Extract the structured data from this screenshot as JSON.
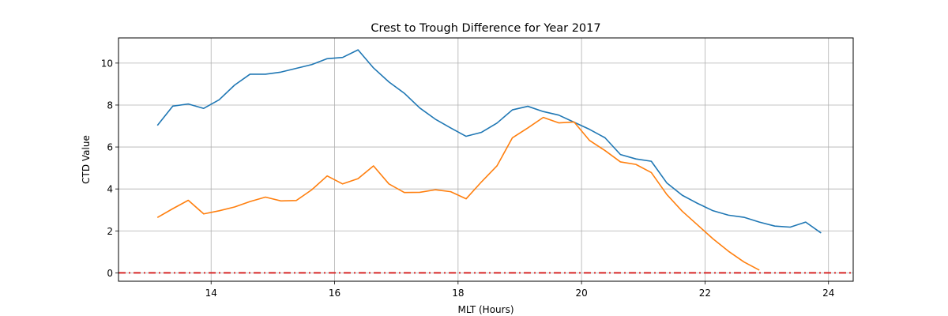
{
  "chart_data": {
    "type": "line",
    "title": "Crest to Trough Difference for Year 2017",
    "xlabel": "MLT (Hours)",
    "ylabel": "CTD Value",
    "xlim": [
      12.5,
      24.4
    ],
    "ylim": [
      -0.4,
      11.2
    ],
    "xticks": [
      14,
      16,
      18,
      20,
      22,
      24
    ],
    "yticks": [
      0,
      2,
      4,
      6,
      8,
      10
    ],
    "grid": true,
    "legend": "none",
    "series": [
      {
        "color": "#1f77b4",
        "points": [
          [
            13.13,
            7.03
          ],
          [
            13.38,
            7.95
          ],
          [
            13.63,
            8.05
          ],
          [
            13.88,
            7.84
          ],
          [
            14.13,
            8.25
          ],
          [
            14.38,
            8.95
          ],
          [
            14.63,
            9.47
          ],
          [
            14.88,
            9.47
          ],
          [
            15.13,
            9.57
          ],
          [
            15.38,
            9.75
          ],
          [
            15.63,
            9.93
          ],
          [
            15.88,
            10.21
          ],
          [
            16.13,
            10.27
          ],
          [
            16.38,
            10.63
          ],
          [
            16.63,
            9.77
          ],
          [
            16.88,
            9.1
          ],
          [
            17.13,
            8.56
          ],
          [
            17.38,
            7.86
          ],
          [
            17.63,
            7.33
          ],
          [
            17.88,
            6.91
          ],
          [
            18.13,
            6.51
          ],
          [
            18.38,
            6.7
          ],
          [
            18.63,
            7.14
          ],
          [
            18.88,
            7.77
          ],
          [
            19.13,
            7.94
          ],
          [
            19.38,
            7.69
          ],
          [
            19.63,
            7.52
          ],
          [
            19.88,
            7.18
          ],
          [
            20.13,
            6.84
          ],
          [
            20.38,
            6.44
          ],
          [
            20.63,
            5.64
          ],
          [
            20.88,
            5.43
          ],
          [
            21.13,
            5.32
          ],
          [
            21.38,
            4.29
          ],
          [
            21.63,
            3.7
          ],
          [
            21.88,
            3.31
          ],
          [
            22.13,
            2.96
          ],
          [
            22.38,
            2.75
          ],
          [
            22.63,
            2.65
          ],
          [
            22.88,
            2.42
          ],
          [
            23.13,
            2.23
          ],
          [
            23.38,
            2.18
          ],
          [
            23.63,
            2.42
          ],
          [
            23.88,
            1.9
          ]
        ]
      },
      {
        "color": "#ff7f0e",
        "points": [
          [
            13.13,
            2.64
          ],
          [
            13.38,
            3.06
          ],
          [
            13.63,
            3.46
          ],
          [
            13.88,
            2.81
          ],
          [
            14.13,
            2.96
          ],
          [
            14.38,
            3.14
          ],
          [
            14.63,
            3.4
          ],
          [
            14.88,
            3.61
          ],
          [
            15.13,
            3.43
          ],
          [
            15.38,
            3.45
          ],
          [
            15.63,
            3.96
          ],
          [
            15.88,
            4.62
          ],
          [
            16.13,
            4.24
          ],
          [
            16.38,
            4.49
          ],
          [
            16.63,
            5.1
          ],
          [
            16.88,
            4.24
          ],
          [
            17.13,
            3.83
          ],
          [
            17.38,
            3.84
          ],
          [
            17.63,
            3.96
          ],
          [
            17.88,
            3.87
          ],
          [
            18.13,
            3.53
          ],
          [
            18.38,
            4.34
          ],
          [
            18.63,
            5.1
          ],
          [
            18.88,
            6.44
          ],
          [
            19.13,
            6.91
          ],
          [
            19.38,
            7.41
          ],
          [
            19.63,
            7.15
          ],
          [
            19.88,
            7.19
          ],
          [
            20.13,
            6.31
          ],
          [
            20.38,
            5.83
          ],
          [
            20.63,
            5.29
          ],
          [
            20.88,
            5.17
          ],
          [
            21.13,
            4.78
          ],
          [
            21.38,
            3.74
          ],
          [
            21.63,
            2.94
          ],
          [
            21.88,
            2.28
          ],
          [
            22.13,
            1.62
          ],
          [
            22.38,
            1.03
          ],
          [
            22.63,
            0.52
          ],
          [
            22.88,
            0.13
          ]
        ]
      }
    ],
    "reference_lines": [
      {
        "y": 0,
        "color": "#d62728",
        "style": "dash-dot"
      }
    ]
  }
}
